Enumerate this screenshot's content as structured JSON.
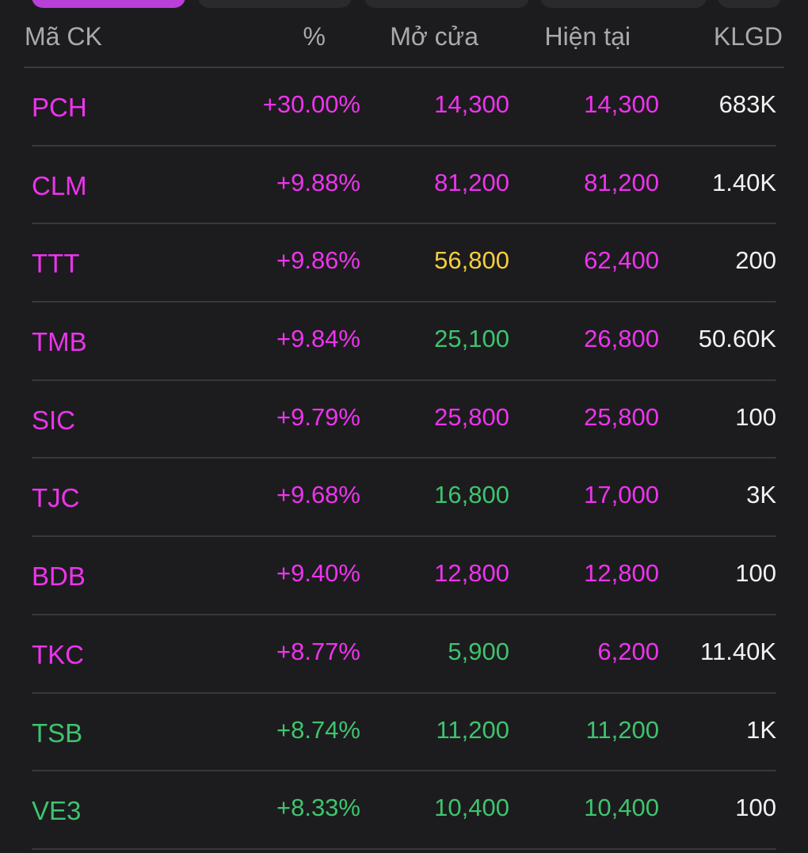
{
  "colors": {
    "background": "#1c1c1e",
    "active_tab": "#b83fd8",
    "ceiling": "#ee33ee",
    "up": "#3ec46e",
    "reference": "#f4cf3c",
    "volume": "#f2f2f2",
    "header_text": "#a9a9ae"
  },
  "header": {
    "symbol": "Mã CK",
    "percent": "%",
    "open": "Mở cửa",
    "current": "Hiện tại",
    "volume": "KLGD"
  },
  "rows": [
    {
      "symbol": "PCH",
      "percent": "+30.00%",
      "open": "14,300",
      "current": "14,300",
      "volume": "683K",
      "symbol_color": "magenta",
      "pct_color": "magenta",
      "open_color": "magenta",
      "cur_color": "magenta"
    },
    {
      "symbol": "CLM",
      "percent": "+9.88%",
      "open": "81,200",
      "current": "81,200",
      "volume": "1.40K",
      "symbol_color": "magenta",
      "pct_color": "magenta",
      "open_color": "magenta",
      "cur_color": "magenta"
    },
    {
      "symbol": "TTT",
      "percent": "+9.86%",
      "open": "56,800",
      "current": "62,400",
      "volume": "200",
      "symbol_color": "magenta",
      "pct_color": "magenta",
      "open_color": "yellow",
      "cur_color": "magenta"
    },
    {
      "symbol": "TMB",
      "percent": "+9.84%",
      "open": "25,100",
      "current": "26,800",
      "volume": "50.60K",
      "symbol_color": "magenta",
      "pct_color": "magenta",
      "open_color": "green",
      "cur_color": "magenta"
    },
    {
      "symbol": "SIC",
      "percent": "+9.79%",
      "open": "25,800",
      "current": "25,800",
      "volume": "100",
      "symbol_color": "magenta",
      "pct_color": "magenta",
      "open_color": "magenta",
      "cur_color": "magenta"
    },
    {
      "symbol": "TJC",
      "percent": "+9.68%",
      "open": "16,800",
      "current": "17,000",
      "volume": "3K",
      "symbol_color": "magenta",
      "pct_color": "magenta",
      "open_color": "green",
      "cur_color": "magenta"
    },
    {
      "symbol": "BDB",
      "percent": "+9.40%",
      "open": "12,800",
      "current": "12,800",
      "volume": "100",
      "symbol_color": "magenta",
      "pct_color": "magenta",
      "open_color": "magenta",
      "cur_color": "magenta"
    },
    {
      "symbol": "TKC",
      "percent": "+8.77%",
      "open": "5,900",
      "current": "6,200",
      "volume": "11.40K",
      "symbol_color": "magenta",
      "pct_color": "magenta",
      "open_color": "green",
      "cur_color": "magenta"
    },
    {
      "symbol": "TSB",
      "percent": "+8.74%",
      "open": "11,200",
      "current": "11,200",
      "volume": "1K",
      "symbol_color": "green",
      "pct_color": "green",
      "open_color": "green",
      "cur_color": "green"
    },
    {
      "symbol": "VE3",
      "percent": "+8.33%",
      "open": "10,400",
      "current": "10,400",
      "volume": "100",
      "symbol_color": "green",
      "pct_color": "green",
      "open_color": "green",
      "cur_color": "green"
    }
  ]
}
